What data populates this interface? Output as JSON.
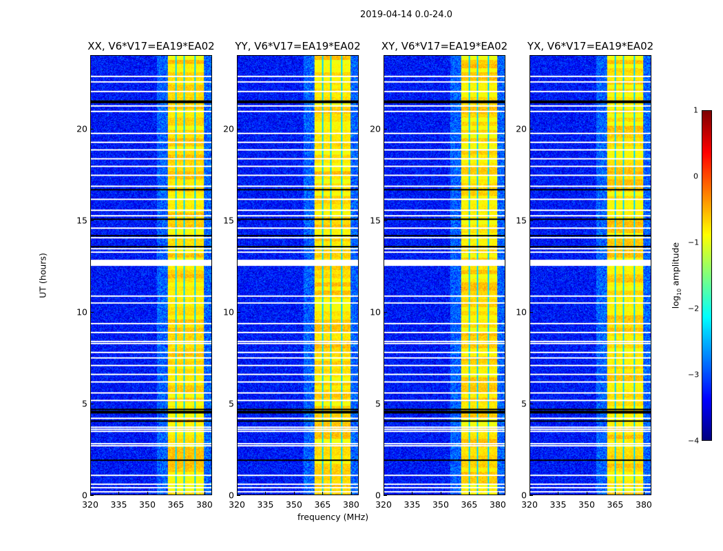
{
  "suptitle": "2019-04-14 0.0-24.0",
  "chart_data": {
    "type": "heatmap",
    "title": "2019-04-14 0.0-24.0",
    "xlabel": "frequency (MHz)",
    "ylabel": "UT (hours)",
    "xlim": [
      320,
      384
    ],
    "ylim": [
      0,
      24
    ],
    "xticks": [
      "320",
      "335",
      "350",
      "365",
      "380"
    ],
    "yticks": [
      "0",
      "5",
      "10",
      "15",
      "20"
    ],
    "panels": [
      {
        "title": "XX, V6*V17=EA19*EA02"
      },
      {
        "title": "YY, V6*V17=EA19*EA02"
      },
      {
        "title": "XY, V6*V17=EA19*EA02"
      },
      {
        "title": "YX, V6*V17=EA19*EA02"
      }
    ],
    "rfi_band_mhz": [
      360.5,
      380
    ],
    "rfi_level_log10": [
      -0.8,
      -0.3
    ],
    "background_level_log10": -3.3,
    "flagged_hours_white": [
      0.2,
      0.4,
      0.6,
      1.1,
      1.9,
      2.7,
      2.8,
      3.5,
      3.6,
      3.7,
      4.2,
      5.2,
      5.6,
      6.2,
      6.6,
      7.1,
      7.5,
      7.8,
      8.3,
      8.4,
      8.9,
      9.4,
      10.5,
      10.9,
      12.6,
      12.7,
      12.8,
      13.3,
      13.5,
      14.1,
      14.6,
      15.3,
      15.6,
      16.2,
      16.9,
      17.5,
      18.0,
      18.4,
      18.9,
      19.3,
      19.8,
      21.0,
      21.3,
      22.1,
      22.6,
      22.9
    ],
    "flagged_hours_black": [
      1.9,
      4.5,
      4.6,
      4.7,
      4.05,
      13.6,
      14.2,
      15.1,
      16.7,
      21.5,
      21.55
    ],
    "colorbar": {
      "label": "log10 amplitude",
      "range": [
        -4,
        1
      ],
      "ticks": [
        "1",
        "0",
        "−1",
        "−2",
        "−3",
        "−4"
      ],
      "colormap": "jet"
    }
  }
}
